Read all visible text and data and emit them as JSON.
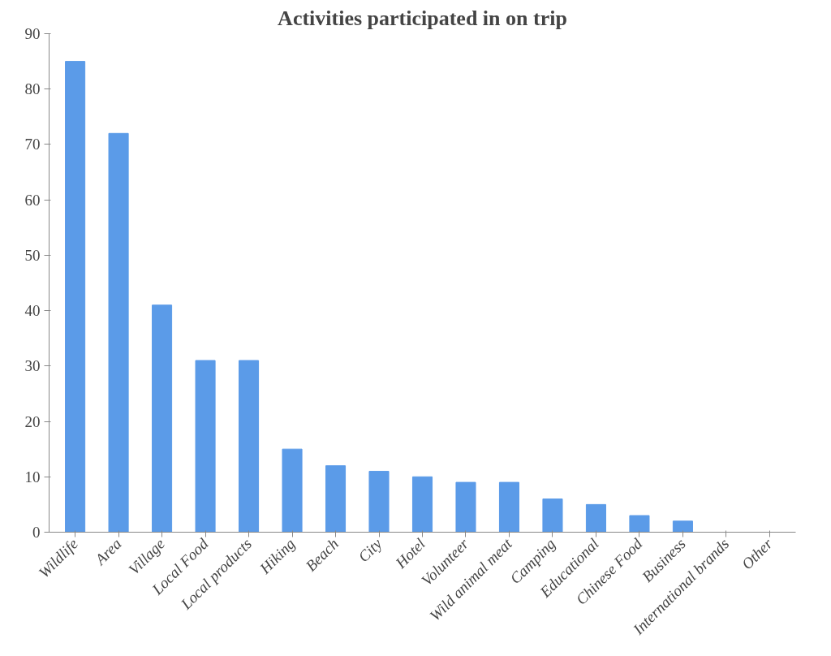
{
  "chart_data": {
    "type": "bar",
    "title": "Activities participated in on trip",
    "categories": [
      "Wildlife",
      "Area",
      "Village",
      "Local Food",
      "Local products",
      "Hiking",
      "Beach",
      "City",
      "Hotel",
      "Volunteer",
      "Wild animal meat",
      "Camping",
      "Educational",
      "Chinese Food",
      "Business",
      "International brands",
      "Other"
    ],
    "values": [
      85,
      72,
      41,
      31,
      31,
      15,
      12,
      11,
      10,
      9,
      9,
      6,
      5,
      3,
      2,
      0,
      0
    ],
    "color": "#5b9be8",
    "ylim": [
      0,
      90
    ],
    "yticks": [
      0,
      10,
      20,
      30,
      40,
      50,
      60,
      70,
      80,
      90
    ],
    "grid": false
  }
}
